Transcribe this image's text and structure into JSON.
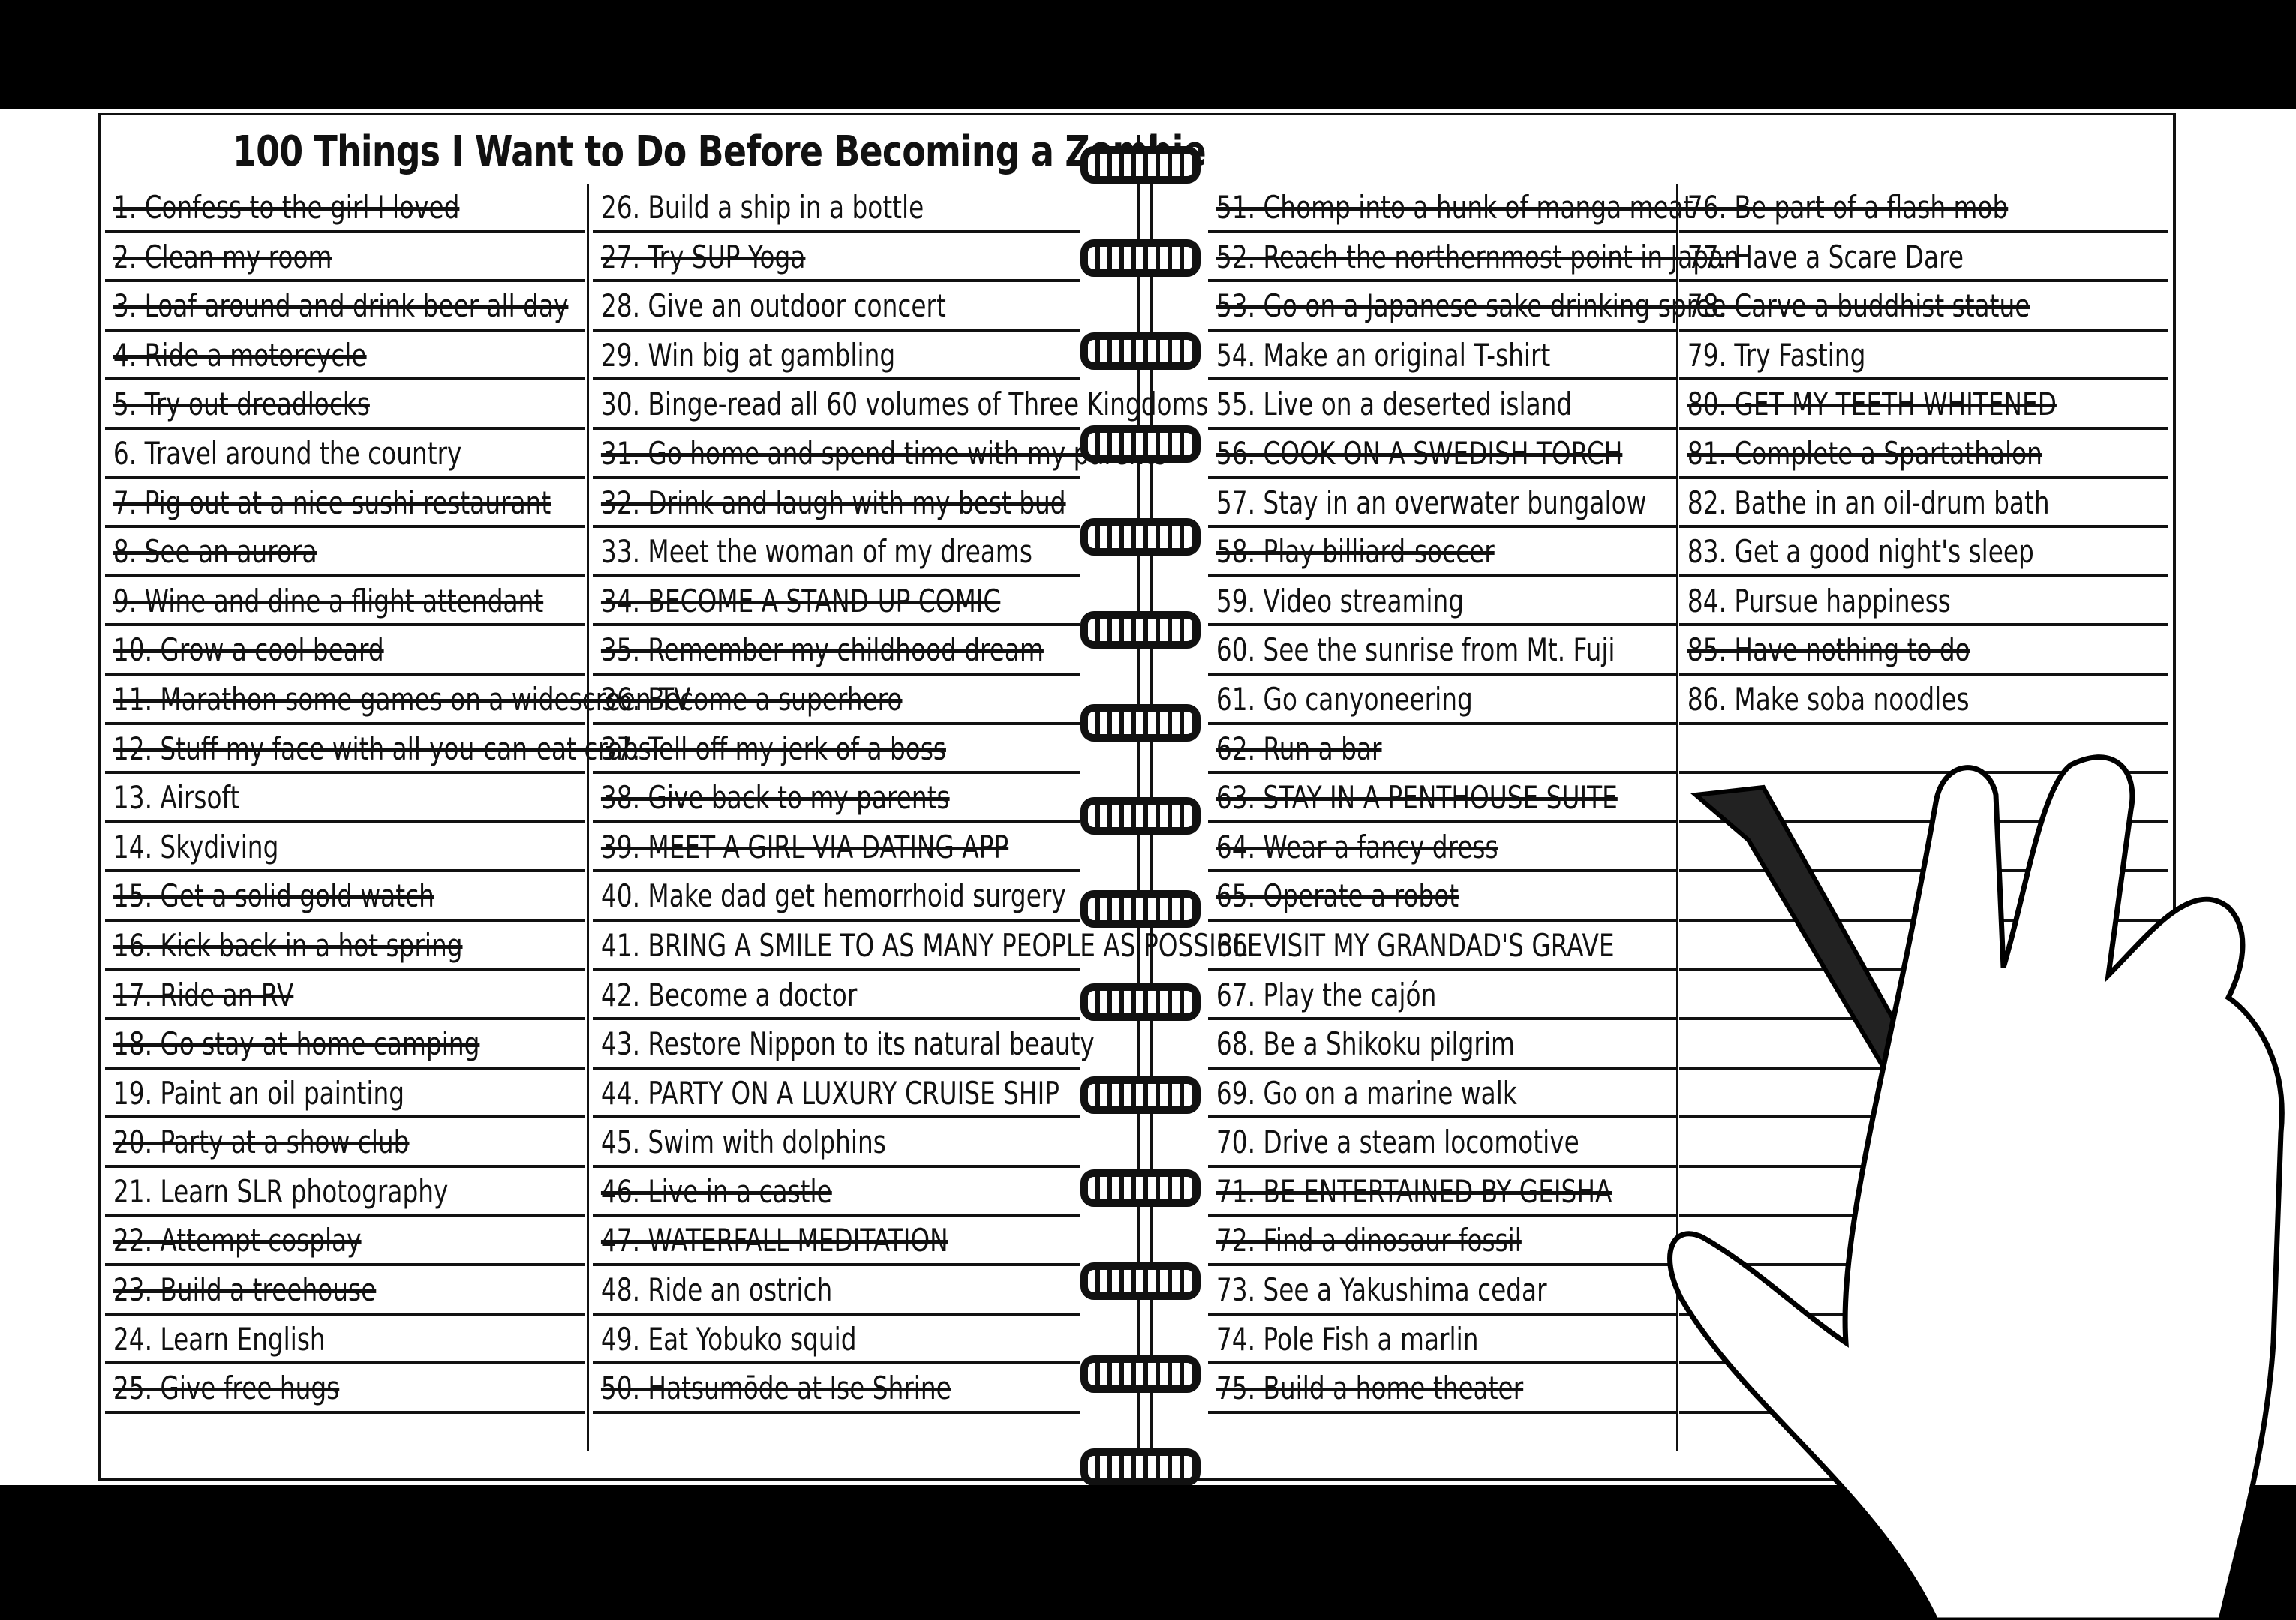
{
  "title": "100 Things I Want to Do Before Becoming a Zombie",
  "items": [
    {
      "n": "1",
      "text": "Confess to the girl I loved",
      "done": true
    },
    {
      "n": "2",
      "text": "Clean my room",
      "done": true
    },
    {
      "n": "3",
      "text": "Loaf around and drink beer all day",
      "done": true
    },
    {
      "n": "4",
      "text": "Ride a motorcycle",
      "done": true
    },
    {
      "n": "5",
      "text": "Try out dreadlocks",
      "done": true
    },
    {
      "n": "6",
      "text": "Travel around the country",
      "done": false
    },
    {
      "n": "7",
      "text": "Pig out at a nice sushi restaurant",
      "done": true
    },
    {
      "n": "8",
      "text": "See an aurora",
      "done": true
    },
    {
      "n": "9",
      "text": "Wine and dine a flight attendant",
      "done": true
    },
    {
      "n": "10",
      "text": "Grow a cool beard",
      "done": true
    },
    {
      "n": "11",
      "text": "Marathon some games on a widescreen TV",
      "done": true
    },
    {
      "n": "12",
      "text": "Stuff my face with all-you-can-eat crabs",
      "done": true
    },
    {
      "n": "13",
      "text": "Airsoft",
      "done": false
    },
    {
      "n": "14",
      "text": "Skydiving",
      "done": false
    },
    {
      "n": "15",
      "text": "Get a solid gold watch",
      "done": true
    },
    {
      "n": "16",
      "text": "Kick back in a hot spring",
      "done": true
    },
    {
      "n": "17",
      "text": "Ride an RV",
      "done": true
    },
    {
      "n": "18",
      "text": "Go stay-at-home camping",
      "done": true
    },
    {
      "n": "19",
      "text": "Paint an oil painting",
      "done": false
    },
    {
      "n": "20",
      "text": "Party at a show club",
      "done": true
    },
    {
      "n": "21",
      "text": "Learn SLR photography",
      "done": false
    },
    {
      "n": "22",
      "text": "Attempt cosplay",
      "done": true
    },
    {
      "n": "23",
      "text": "Build a treehouse",
      "done": true
    },
    {
      "n": "24",
      "text": "Learn English",
      "done": false
    },
    {
      "n": "25",
      "text": "Give free hugs",
      "done": true
    },
    {
      "n": "26",
      "text": "Build a ship in a bottle",
      "done": false
    },
    {
      "n": "27",
      "text": "Try SUP Yoga",
      "done": true
    },
    {
      "n": "28",
      "text": "Give an outdoor concert",
      "done": false
    },
    {
      "n": "29",
      "text": "Win big at gambling",
      "done": false
    },
    {
      "n": "30",
      "text": "Binge-read all 60 volumes of Three Kingdoms",
      "done": false
    },
    {
      "n": "31",
      "text": "Go home and spend time with my parents",
      "done": true
    },
    {
      "n": "32",
      "text": "Drink and laugh with my best bud",
      "done": true
    },
    {
      "n": "33",
      "text": "Meet the woman of my dreams",
      "done": false
    },
    {
      "n": "34",
      "text": "BECOME A STAND-UP COMIC",
      "done": true
    },
    {
      "n": "35",
      "text": "Remember my childhood dream",
      "done": true
    },
    {
      "n": "36",
      "text": "Become a superhero",
      "done": true
    },
    {
      "n": "37",
      "text": "Tell off my jerk of a boss",
      "done": true
    },
    {
      "n": "38",
      "text": "Give back to my parents",
      "done": true
    },
    {
      "n": "39",
      "text": "MEET A GIRL VIA DATING APP",
      "done": true
    },
    {
      "n": "40",
      "text": "Make dad get hemorrhoid surgery",
      "done": false
    },
    {
      "n": "41",
      "text": "BRING A SMILE TO AS MANY PEOPLE AS POSSIBLE",
      "done": false
    },
    {
      "n": "42",
      "text": "Become a doctor",
      "done": false
    },
    {
      "n": "43",
      "text": "Restore Nippon to its natural beauty",
      "done": false
    },
    {
      "n": "44",
      "text": "PARTY ON A LUXURY CRUISE SHIP",
      "done": false
    },
    {
      "n": "45",
      "text": "Swim with dolphins",
      "done": false
    },
    {
      "n": "46",
      "text": "Live in a castle",
      "done": true
    },
    {
      "n": "47",
      "text": "WATERFALL MEDITATION",
      "done": true
    },
    {
      "n": "48",
      "text": "Ride an ostrich",
      "done": false
    },
    {
      "n": "49",
      "text": "Eat Yobuko squid",
      "done": false
    },
    {
      "n": "50",
      "text": "Hatsumōde at Ise Shrine",
      "done": true
    },
    {
      "n": "51",
      "text": "Chomp into a hunk of manga meat",
      "done": true
    },
    {
      "n": "52",
      "text": "Reach the northernmost point in Japan",
      "done": true
    },
    {
      "n": "53",
      "text": "Go on a Japanese sake drinking spree",
      "done": true
    },
    {
      "n": "54",
      "text": "Make an original T-shirt",
      "done": false
    },
    {
      "n": "55",
      "text": "Live on a deserted island",
      "done": false
    },
    {
      "n": "56",
      "text": "COOK ON A SWEDISH TORCH",
      "done": true
    },
    {
      "n": "57",
      "text": "Stay in an overwater bungalow",
      "done": false
    },
    {
      "n": "58",
      "text": "Play billiard-soccer",
      "done": true
    },
    {
      "n": "59",
      "text": "Video streaming",
      "done": false
    },
    {
      "n": "60",
      "text": "See the sunrise from Mt. Fuji",
      "done": false
    },
    {
      "n": "61",
      "text": "Go canyoneering",
      "done": false
    },
    {
      "n": "62",
      "text": "Run a bar",
      "done": true
    },
    {
      "n": "63",
      "text": "STAY IN A PENTHOUSE SUITE",
      "done": true
    },
    {
      "n": "64",
      "text": "Wear a fancy dress",
      "done": true
    },
    {
      "n": "65",
      "text": "Operate a robot",
      "done": true
    },
    {
      "n": "66",
      "text": "VISIT MY GRANDAD'S GRAVE",
      "done": false
    },
    {
      "n": "67",
      "text": "Play the cajón",
      "done": false
    },
    {
      "n": "68",
      "text": "Be a Shikoku pilgrim",
      "done": false
    },
    {
      "n": "69",
      "text": "Go on a marine walk",
      "done": false
    },
    {
      "n": "70",
      "text": "Drive a steam locomotive",
      "done": false
    },
    {
      "n": "71",
      "text": "BE ENTERTAINED BY GEISHA",
      "done": true
    },
    {
      "n": "72",
      "text": "Find a dinosaur fossil",
      "done": true
    },
    {
      "n": "73",
      "text": "See a Yakushima cedar",
      "done": false
    },
    {
      "n": "74",
      "text": "Pole Fish a marlin",
      "done": false
    },
    {
      "n": "75",
      "text": "Build a home theater",
      "done": true
    },
    {
      "n": "76",
      "text": "Be part of a flash mob",
      "done": true
    },
    {
      "n": "77",
      "text": "Have a Scare Dare",
      "done": false
    },
    {
      "n": "78",
      "text": "Carve a buddhist statue",
      "done": true
    },
    {
      "n": "79",
      "text": "Try Fasting",
      "done": false
    },
    {
      "n": "80",
      "text": "GET MY TEETH WHITENED",
      "done": true
    },
    {
      "n": "81",
      "text": "Complete a Spartathalon",
      "done": true
    },
    {
      "n": "82",
      "text": "Bathe in an oil-drum bath",
      "done": false
    },
    {
      "n": "83",
      "text": "Get a good night's sleep",
      "done": false
    },
    {
      "n": "84",
      "text": "Pursue happiness",
      "done": false
    },
    {
      "n": "85",
      "text": "Have nothing to do",
      "done": true
    },
    {
      "n": "86",
      "text": "Make soba noodles",
      "done": false
    }
  ]
}
